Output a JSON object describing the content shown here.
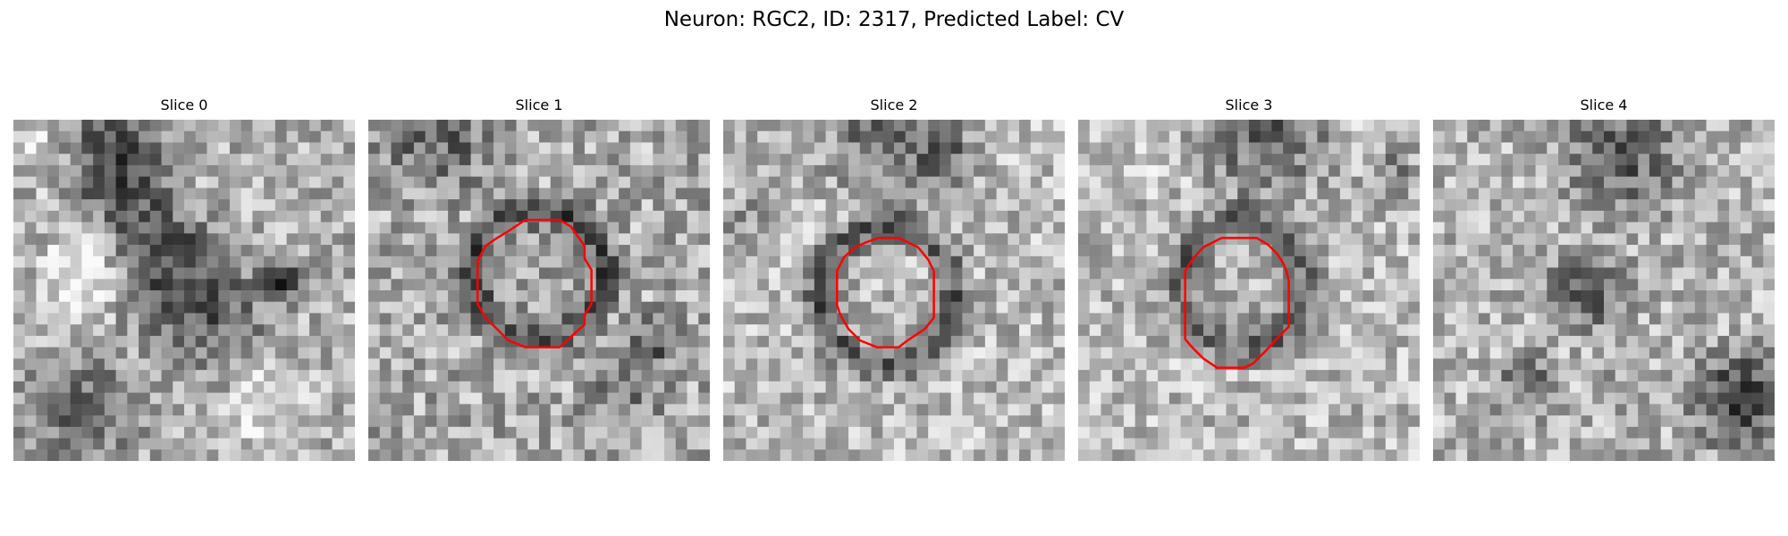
{
  "figure": {
    "title": "Neuron: RGC2, ID: 2317, Predicted Label: CV",
    "colormap": "gray",
    "contour_color": "#ff0000",
    "grid_size": 30
  },
  "slices": [
    {
      "label": "Slice 0",
      "has_contour": false
    },
    {
      "label": "Slice 1",
      "has_contour": true
    },
    {
      "label": "Slice 2",
      "has_contour": true
    },
    {
      "label": "Slice 3",
      "has_contour": true
    },
    {
      "label": "Slice 4",
      "has_contour": false
    }
  ]
}
